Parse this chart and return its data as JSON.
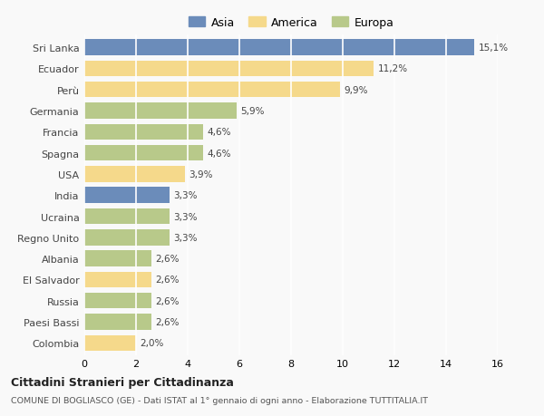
{
  "categories": [
    "Sri Lanka",
    "Ecuador",
    "Perù",
    "Germania",
    "Francia",
    "Spagna",
    "USA",
    "India",
    "Ucraina",
    "Regno Unito",
    "Albania",
    "El Salvador",
    "Russia",
    "Paesi Bassi",
    "Colombia"
  ],
  "values": [
    15.1,
    11.2,
    9.9,
    5.9,
    4.6,
    4.6,
    3.9,
    3.3,
    3.3,
    3.3,
    2.6,
    2.6,
    2.6,
    2.6,
    2.0
  ],
  "labels": [
    "15,1%",
    "11,2%",
    "9,9%",
    "5,9%",
    "4,6%",
    "4,6%",
    "3,9%",
    "3,3%",
    "3,3%",
    "3,3%",
    "2,6%",
    "2,6%",
    "2,6%",
    "2,6%",
    "2,0%"
  ],
  "continents": [
    "Asia",
    "America",
    "America",
    "Europa",
    "Europa",
    "Europa",
    "America",
    "Asia",
    "Europa",
    "Europa",
    "Europa",
    "America",
    "Europa",
    "Europa",
    "America"
  ],
  "colors": {
    "Asia": "#6b8cba",
    "America": "#f5d98b",
    "Europa": "#b8c98a"
  },
  "xlim": [
    0,
    16
  ],
  "xticks": [
    0,
    2,
    4,
    6,
    8,
    10,
    12,
    14,
    16
  ],
  "title": "Cittadini Stranieri per Cittadinanza",
  "subtitle": "COMUNE DI BOGLIASCO (GE) - Dati ISTAT al 1° gennaio di ogni anno - Elaborazione TUTTITALIA.IT",
  "background_color": "#f9f9f9",
  "grid_color": "#ffffff",
  "bar_height": 0.75,
  "legend_labels": [
    "Asia",
    "America",
    "Europa"
  ]
}
